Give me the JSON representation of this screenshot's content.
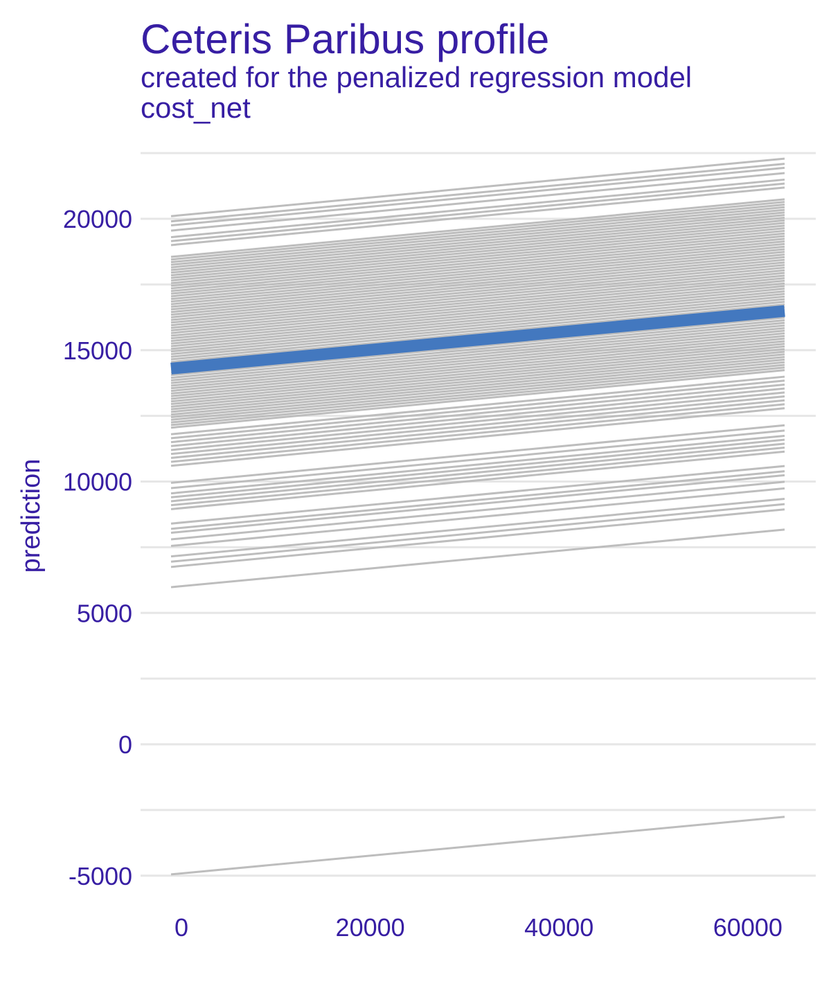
{
  "chart_data": {
    "type": "line",
    "title": "Ceteris Paribus profile",
    "subtitle": "created for the penalized regression model",
    "facet_label": "cost_net",
    "xlabel": "",
    "ylabel": "prediction",
    "xlim": [
      -2000,
      66000
    ],
    "ylim": [
      -6500,
      22500
    ],
    "x_ticks": [
      0,
      20000,
      40000,
      60000
    ],
    "x_tick_labels": [
      "0",
      "20000",
      "40000",
      "60000"
    ],
    "y_ticks": [
      -5000,
      0,
      5000,
      10000,
      15000,
      20000
    ],
    "y_tick_labels": [
      "-5000",
      "0",
      "5000",
      "10000",
      "15000",
      "20000"
    ],
    "grid": true,
    "x_range": [
      0,
      65000
    ],
    "slope_per_unit": 0.0337,
    "highlight_color": "#4378bf",
    "profile_color": "#bdbdbd",
    "series": [
      {
        "values": [
          14300,
          16490
        ],
        "highlight": true
      }
    ],
    "profile_start_values": [
      -4950,
      5980,
      6750,
      6950,
      7150,
      7550,
      7800,
      8050,
      8200,
      8400,
      8950,
      9100,
      9250,
      9400,
      9550,
      9750,
      9950,
      10600,
      10750,
      10900,
      11050,
      11200,
      11350,
      11500,
      11650,
      11800,
      12050,
      12150,
      12250,
      12350,
      12450,
      12550,
      12650,
      12750,
      12850,
      12950,
      13050,
      13150,
      13250,
      13350,
      13450,
      13550,
      13650,
      13750,
      13850,
      13950,
      14050,
      14150,
      14250,
      14350,
      14450,
      14550,
      14650,
      14750,
      14850,
      14950,
      15050,
      15150,
      15250,
      15350,
      15450,
      15550,
      15650,
      15750,
      15850,
      15950,
      16050,
      16150,
      16250,
      16350,
      16450,
      16550,
      16650,
      16750,
      16850,
      16950,
      17050,
      17150,
      17250,
      17350,
      17450,
      17550,
      17650,
      17750,
      17850,
      17950,
      18050,
      18150,
      18250,
      18350,
      18450,
      18550,
      19000,
      19150,
      19300,
      19550,
      19750,
      19900,
      20100
    ]
  }
}
